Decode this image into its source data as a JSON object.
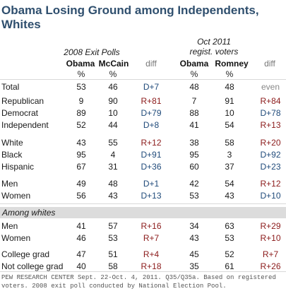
{
  "title": "Obama Losing Ground among Independents, Whites",
  "group_2008": "2008 Exit Polls",
  "group_2011_line1": "Oct 2011",
  "group_2011_line2": "regist. voters",
  "col_obama_2008": "Obama",
  "col_mccain": "McCain",
  "col_diff_1": "diff",
  "col_obama_2011": "Obama",
  "col_romney": "Romney",
  "col_diff_2": "diff",
  "pct": "%",
  "section_label": "Among whites",
  "source": "PEW RESEARCH CENTER Sept. 22-Oct. 4, 2011. Q35/Q35a. Based on registered voters. 2008 exit poll conducted by National Election Pool.",
  "colors": {
    "title": "#2f4f6e",
    "rep": "#8b1a1a",
    "dem": "#1f4a7a",
    "even": "#888888",
    "band": "#dcdcdc"
  },
  "chart_data": {
    "type": "table",
    "columns": [
      "",
      "Obama 2008",
      "McCain 2008",
      "diff",
      "Obama Oct 2011",
      "Romney Oct 2011",
      "diff"
    ],
    "rows": [
      {
        "label": "Total",
        "o08": "53",
        "m08": "46",
        "d1": "D+7",
        "o11": "48",
        "r11": "48",
        "d2": "even"
      },
      {
        "label": "Republican",
        "o08": "9",
        "m08": "90",
        "d1": "R+81",
        "o11": "7",
        "r11": "91",
        "d2": "R+84"
      },
      {
        "label": "Democrat",
        "o08": "89",
        "m08": "10",
        "d1": "D+79",
        "o11": "88",
        "r11": "10",
        "d2": "D+78"
      },
      {
        "label": "Independent",
        "o08": "52",
        "m08": "44",
        "d1": "D+8",
        "o11": "41",
        "r11": "54",
        "d2": "R+13"
      },
      {
        "label": "White",
        "o08": "43",
        "m08": "55",
        "d1": "R+12",
        "o11": "38",
        "r11": "58",
        "d2": "R+20"
      },
      {
        "label": "Black",
        "o08": "95",
        "m08": "4",
        "d1": "D+91",
        "o11": "95",
        "r11": "3",
        "d2": "D+92"
      },
      {
        "label": "Hispanic",
        "o08": "67",
        "m08": "31",
        "d1": "D+36",
        "o11": "60",
        "r11": "37",
        "d2": "D+23"
      },
      {
        "label": "Men",
        "o08": "49",
        "m08": "48",
        "d1": "D+1",
        "o11": "42",
        "r11": "54",
        "d2": "R+12"
      },
      {
        "label": "Women",
        "o08": "56",
        "m08": "43",
        "d1": "D+13",
        "o11": "53",
        "r11": "43",
        "d2": "D+10"
      },
      {
        "label": "Men",
        "o08": "41",
        "m08": "57",
        "d1": "R+16",
        "o11": "34",
        "r11": "63",
        "d2": "R+29"
      },
      {
        "label": "Women",
        "o08": "46",
        "m08": "53",
        "d1": "R+7",
        "o11": "43",
        "r11": "53",
        "d2": "R+10"
      },
      {
        "label": "College grad",
        "o08": "47",
        "m08": "51",
        "d1": "R+4",
        "o11": "45",
        "r11": "52",
        "d2": "R+7"
      },
      {
        "label": "Not college grad",
        "o08": "40",
        "m08": "58",
        "d1": "R+18",
        "o11": "35",
        "r11": "61",
        "d2": "R+26"
      }
    ]
  }
}
